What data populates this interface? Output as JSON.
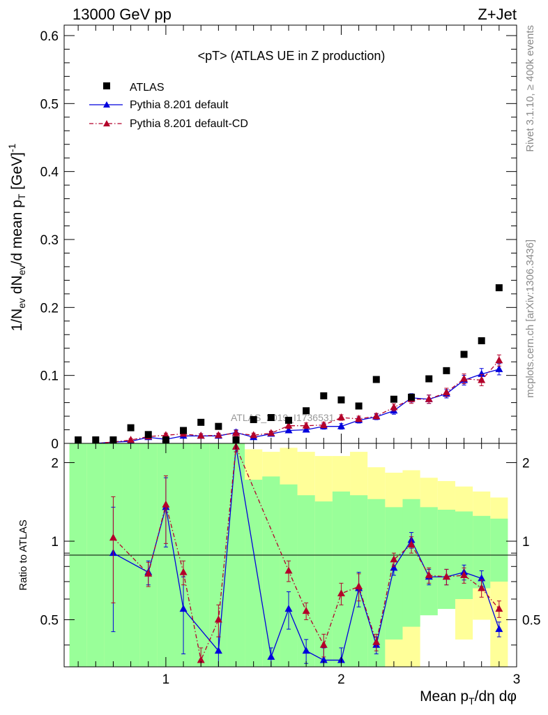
{
  "header": {
    "left": "13000 GeV pp",
    "right": "Z+Jet"
  },
  "side_labels": {
    "rivet": "Rivet 3.1.10, ≥ 400k events",
    "mcplots": "mcplots.cern.ch [arXiv:1306.3436]"
  },
  "watermark": "ATLAS_2019_I1736531",
  "colors": {
    "atlas": "#000000",
    "default": "#0000dd",
    "default_cd": "#b3002a",
    "band_green": "#99ff99",
    "band_yellow": "#ffff99"
  },
  "chart_data": [
    {
      "type": "scatter",
      "title": "<pT> (ATLAS UE in Z production)",
      "ylabel": "1/N_ev dN_ev/d mean p_T [GeV]^-1",
      "xlim": [
        0.42,
        3.0
      ],
      "ylim": [
        0,
        0.6
      ],
      "yticks": [
        "0",
        "0.1",
        "0.2",
        "0.3",
        "0.4",
        "0.5",
        "0.6"
      ],
      "legend_position": "top-left",
      "series": [
        {
          "name": "ATLAS",
          "marker": "square",
          "x": [
            0.5,
            0.6,
            0.7,
            0.8,
            0.9,
            1.0,
            1.1,
            1.2,
            1.3,
            1.4,
            1.5,
            1.6,
            1.7,
            1.8,
            1.9,
            2.0,
            2.1,
            2.2,
            2.3,
            2.4,
            2.5,
            2.6,
            2.7,
            2.8,
            2.9
          ],
          "y": [
            0.005,
            0.0,
            0.002,
            0.023,
            0.013,
            0.005,
            0.019,
            0.031,
            0.025,
            0.003,
            0.035,
            0.038,
            0.034,
            0.048,
            0.07,
            0.064,
            0.055,
            0.094,
            0.065,
            0.068,
            0.095,
            0.107,
            0.131,
            0.151,
            0.229
          ]
        },
        {
          "name": "Pythia 8.201 default",
          "marker": "triangle",
          "line": "solid",
          "x": [
            0.6,
            0.7,
            0.8,
            0.9,
            1.0,
            1.1,
            1.2,
            1.3,
            1.4,
            1.5,
            1.6,
            1.7,
            1.8,
            1.9,
            2.0,
            2.1,
            2.2,
            2.3,
            2.4,
            2.5,
            2.6,
            2.7,
            2.8,
            2.9
          ],
          "y": [
            0.0,
            0.002,
            0.003,
            0.009,
            0.006,
            0.011,
            0.011,
            0.011,
            0.016,
            0.009,
            0.014,
            0.019,
            0.02,
            0.025,
            0.025,
            0.034,
            0.039,
            0.048,
            0.067,
            0.065,
            0.073,
            0.093,
            0.102,
            0.109
          ],
          "yerr": [
            0.0,
            0.002,
            0.002,
            0.003,
            0.003,
            0.003,
            0.003,
            0.003,
            0.004,
            0.003,
            0.003,
            0.003,
            0.003,
            0.004,
            0.004,
            0.004,
            0.004,
            0.005,
            0.006,
            0.006,
            0.006,
            0.007,
            0.008,
            0.008
          ]
        },
        {
          "name": "Pythia 8.201 default-CD",
          "marker": "triangle",
          "line": "dash-dot",
          "x": [
            0.6,
            0.7,
            0.8,
            0.9,
            1.0,
            1.1,
            1.2,
            1.3,
            1.4,
            1.5,
            1.6,
            1.7,
            1.8,
            1.9,
            2.0,
            2.1,
            2.2,
            2.3,
            2.4,
            2.5,
            2.6,
            2.7,
            2.8,
            2.9
          ],
          "y": [
            0.0,
            0.002,
            0.005,
            0.01,
            0.012,
            0.014,
            0.011,
            0.012,
            0.015,
            0.012,
            0.015,
            0.026,
            0.026,
            0.027,
            0.038,
            0.036,
            0.04,
            0.053,
            0.065,
            0.065,
            0.075,
            0.095,
            0.093,
            0.122
          ],
          "yerr": [
            0.0,
            0.002,
            0.002,
            0.003,
            0.003,
            0.003,
            0.003,
            0.003,
            0.004,
            0.003,
            0.003,
            0.004,
            0.004,
            0.004,
            0.004,
            0.004,
            0.004,
            0.005,
            0.006,
            0.006,
            0.006,
            0.007,
            0.008,
            0.008
          ]
        }
      ]
    },
    {
      "type": "line",
      "xlabel": "Mean p_T/dη dφ",
      "ylabel": "Ratio to ATLAS",
      "xlim": [
        0.42,
        3.0
      ],
      "ylim": [
        0.33,
        2.37
      ],
      "yticks": [
        "0.5",
        "1",
        "2"
      ],
      "xticks": [
        "1",
        "2",
        "3"
      ],
      "bands": {
        "bins": [
          [
            0.45,
            0.55
          ],
          [
            0.55,
            0.65
          ],
          [
            0.65,
            0.75
          ],
          [
            0.75,
            0.85
          ],
          [
            0.85,
            0.95
          ],
          [
            0.95,
            1.05
          ],
          [
            1.05,
            1.15
          ],
          [
            1.15,
            1.25
          ],
          [
            1.25,
            1.35
          ],
          [
            1.35,
            1.45
          ],
          [
            1.45,
            1.55
          ],
          [
            1.55,
            1.65
          ],
          [
            1.65,
            1.75
          ],
          [
            1.75,
            1.85
          ],
          [
            1.85,
            1.95
          ],
          [
            1.95,
            2.05
          ],
          [
            2.05,
            2.15
          ],
          [
            2.15,
            2.25
          ],
          [
            2.25,
            2.35
          ],
          [
            2.35,
            2.45
          ],
          [
            2.45,
            2.55
          ],
          [
            2.55,
            2.65
          ],
          [
            2.65,
            2.75
          ],
          [
            2.75,
            2.85
          ],
          [
            2.85,
            2.95
          ]
        ],
        "green_lo": [
          0.33,
          0.33,
          0.33,
          0.33,
          0.33,
          0.33,
          0.33,
          0.33,
          0.33,
          0.33,
          0.33,
          0.33,
          0.33,
          0.33,
          0.33,
          0.33,
          0.33,
          0.33,
          0.42,
          0.47,
          0.52,
          0.55,
          0.6,
          0.66,
          0.7
        ],
        "green_hi": [
          2.37,
          2.37,
          2.37,
          2.37,
          2.37,
          2.37,
          2.37,
          2.37,
          2.37,
          2.37,
          1.72,
          1.77,
          1.65,
          1.5,
          1.42,
          1.55,
          1.5,
          1.45,
          1.35,
          1.45,
          1.35,
          1.32,
          1.3,
          1.25,
          1.22
        ],
        "yellow_lo": [
          0.33,
          0.33,
          0.33,
          0.33,
          0.33,
          0.33,
          0.33,
          0.33,
          0.33,
          0.33,
          0.35,
          0.33,
          0.33,
          0.4,
          0.42,
          0.36,
          0.33,
          0.33,
          0.33,
          0.33,
          0.55,
          0.62,
          0.42,
          0.5,
          0.33
        ],
        "yellow_hi": [
          2.37,
          2.37,
          2.37,
          2.37,
          2.37,
          2.37,
          2.37,
          2.37,
          2.37,
          2.37,
          2.25,
          2.2,
          2.28,
          2.2,
          2.12,
          2.12,
          2.2,
          1.92,
          1.83,
          1.87,
          1.75,
          1.7,
          1.62,
          1.55,
          1.47
        ]
      },
      "series": [
        {
          "name": "Pythia 8.201 default",
          "line": "solid",
          "x": [
            0.7,
            0.9,
            1.0,
            1.1,
            1.3,
            1.4,
            1.6,
            1.7,
            1.8,
            1.9,
            2.0,
            2.1,
            2.2,
            2.3,
            2.4,
            2.5,
            2.6,
            2.7,
            2.8,
            2.9
          ],
          "y": [
            0.9,
            0.76,
            1.35,
            0.55,
            0.38,
            2.3,
            0.36,
            0.55,
            0.38,
            0.35,
            0.35,
            0.66,
            0.4,
            0.79,
            1.01,
            0.73,
            0.73,
            0.76,
            0.72,
            0.46
          ],
          "yerr": [
            0.45,
            0.08,
            0.4,
            0.18,
            0.05,
            0.1,
            0.03,
            0.09,
            0.04,
            0.04,
            0.04,
            0.1,
            0.03,
            0.05,
            0.07,
            0.05,
            0.05,
            0.05,
            0.05,
            0.03
          ]
        },
        {
          "name": "Pythia 8.201 default-CD",
          "line": "dash-dot",
          "x": [
            0.7,
            0.9,
            1.0,
            1.1,
            1.2,
            1.3,
            1.4,
            1.7,
            1.8,
            1.9,
            2.0,
            2.1,
            2.2,
            2.3,
            2.4,
            2.5,
            2.6,
            2.7,
            2.8,
            2.9
          ],
          "y": [
            1.03,
            0.75,
            1.38,
            0.76,
            0.35,
            0.5,
            2.3,
            0.77,
            0.54,
            0.4,
            0.63,
            0.67,
            0.41,
            0.85,
            0.97,
            0.74,
            0.73,
            0.74,
            0.66,
            0.55
          ],
          "yerr": [
            0.45,
            0.08,
            0.4,
            0.08,
            0.04,
            0.07,
            0.1,
            0.07,
            0.04,
            0.04,
            0.06,
            0.08,
            0.03,
            0.05,
            0.07,
            0.05,
            0.05,
            0.05,
            0.05,
            0.04
          ]
        }
      ]
    }
  ]
}
